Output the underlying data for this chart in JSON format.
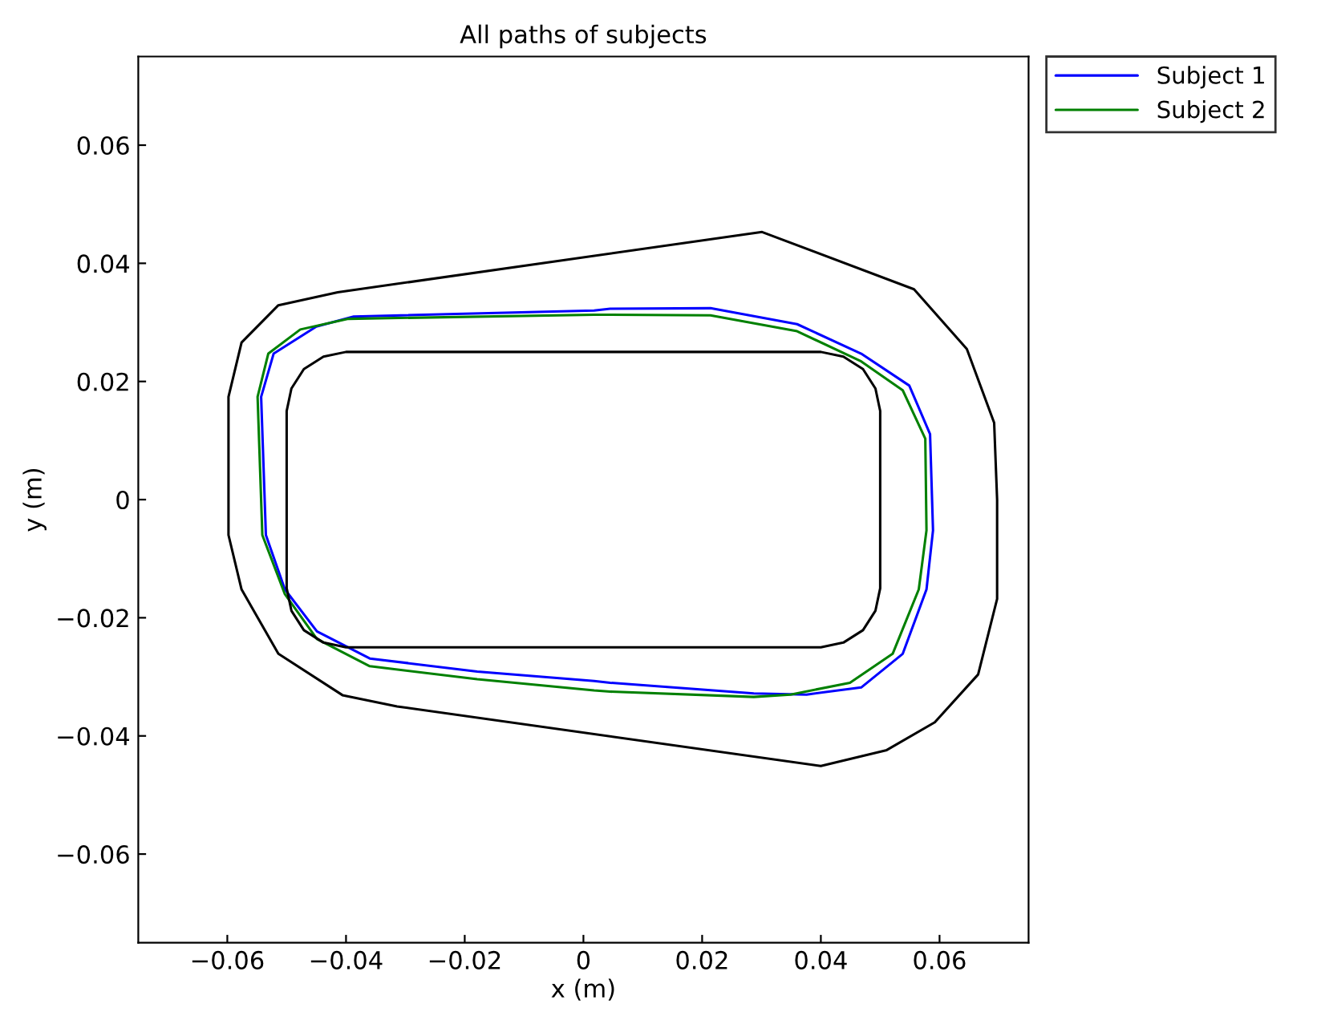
{
  "chart_data": {
    "type": "line",
    "title": "All paths of subjects",
    "xlabel": "x (m)",
    "ylabel": "y (m)",
    "xlim": [
      -0.075,
      0.075
    ],
    "ylim": [
      -0.075,
      0.075
    ],
    "xticks": [
      {
        "value": -0.06,
        "label": "−0.06"
      },
      {
        "value": -0.04,
        "label": "−0.04"
      },
      {
        "value": -0.02,
        "label": "−0.02"
      },
      0,
      0.02,
      0.04,
      0.06
    ],
    "yticks": [
      {
        "value": -0.06,
        "label": "−0.06"
      },
      {
        "value": -0.04,
        "label": "−0.04"
      },
      {
        "value": -0.02,
        "label": "−0.02"
      },
      0,
      0.02,
      0.04,
      0.06
    ],
    "grid": false,
    "legend": "top right",
    "marker": "none",
    "line_style": "solid",
    "series": [
      {
        "name": "Subject 1",
        "color": "#0000ff",
        "x": [
          -0.0543,
          -0.0522,
          -0.045,
          -0.0387,
          0.0018,
          0.0045,
          0.0214,
          0.036,
          0.0468,
          0.0549,
          0.0584,
          0.0589,
          null,
          -0.0543,
          -0.0535,
          -0.0503,
          -0.0449,
          -0.036,
          -0.0179,
          0.0018,
          0.0045,
          0.0287,
          0.0376,
          0.0468,
          0.0538,
          0.0578,
          0.0589
        ],
        "values": [
          0.0174,
          0.0247,
          0.0293,
          0.031,
          0.032,
          0.0323,
          0.0324,
          0.0297,
          0.0247,
          0.0193,
          0.0111,
          -0.0052,
          null,
          0.0174,
          -0.006,
          -0.0152,
          -0.0223,
          -0.0269,
          -0.0291,
          -0.0307,
          -0.031,
          -0.0328,
          -0.033,
          -0.0318,
          -0.0261,
          -0.0152,
          -0.0052
        ]
      },
      {
        "name": "Subject 2",
        "color": "#008000",
        "x": [
          -0.0549,
          -0.0531,
          -0.0477,
          -0.0396,
          0.0018,
          0.0045,
          0.0214,
          0.036,
          0.0468,
          0.0538,
          0.0576,
          0.0578,
          null,
          -0.0549,
          -0.0541,
          -0.0503,
          -0.0449,
          -0.036,
          -0.0179,
          0.0018,
          0.0045,
          0.0287,
          0.0349,
          0.0449,
          0.0521,
          0.0565,
          0.0578
        ],
        "values": [
          0.0174,
          0.0247,
          0.0288,
          0.0306,
          0.0313,
          0.0313,
          0.0312,
          0.0285,
          0.0234,
          0.0185,
          0.0103,
          -0.0052,
          null,
          0.0174,
          -0.006,
          -0.016,
          -0.0236,
          -0.0282,
          -0.0304,
          -0.0323,
          -0.0325,
          -0.0334,
          -0.033,
          -0.031,
          -0.0261,
          -0.0152,
          -0.0052
        ]
      },
      {
        "color": "#000000",
        "x": [
          -0.0598,
          -0.0598,
          -0.0576,
          -0.0514,
          -0.0414,
          0.0301,
          0.0557,
          0.0646,
          0.0692,
          0.0697,
          0.0697,
          null,
          -0.0598,
          -0.0576,
          -0.0514,
          -0.0406,
          -0.0314,
          0.04,
          0.0511,
          0.0592,
          0.0665,
          0.0697
        ],
        "values": [
          -0.006,
          0.0174,
          0.0266,
          0.0329,
          0.0351,
          0.0453,
          0.0356,
          0.0255,
          0.013,
          0.0,
          -0.0168,
          null,
          -0.006,
          -0.0152,
          -0.0261,
          -0.0331,
          -0.035,
          -0.0451,
          -0.0424,
          -0.0377,
          -0.0296,
          -0.0168
        ]
      },
      {
        "color": "#000000",
        "x": [
          -0.05,
          -0.05,
          -0.0492,
          -0.0471,
          -0.0438,
          -0.04,
          0.04,
          0.0438,
          0.0471,
          0.0492,
          0.05,
          0.05,
          null,
          -0.05,
          -0.0492,
          -0.0471,
          -0.0438,
          -0.04,
          0.04,
          0.0438,
          0.0471,
          0.0492,
          0.05
        ],
        "values": [
          -0.015,
          0.015,
          0.0188,
          0.0221,
          0.0242,
          0.025,
          0.025,
          0.0242,
          0.0221,
          0.0188,
          0.015,
          -0.015,
          null,
          -0.015,
          -0.0188,
          -0.0221,
          -0.0242,
          -0.025,
          -0.025,
          -0.0242,
          -0.0221,
          -0.0188,
          -0.015
        ]
      }
    ]
  }
}
